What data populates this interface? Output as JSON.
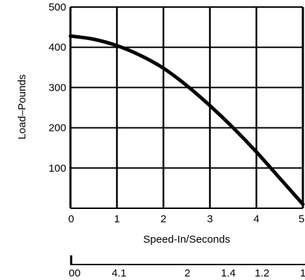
{
  "chart_data": {
    "type": "line",
    "title": "",
    "xlabel": "Speed-In/Seconds",
    "ylabel": "Load–Pounds",
    "xlim": [
      0,
      5
    ],
    "ylim": [
      0,
      500
    ],
    "grid": true,
    "x_ticks": [
      "0",
      "1",
      "2",
      "3",
      "4",
      "5"
    ],
    "y_ticks": [
      "100",
      "200",
      "300",
      "400",
      "500"
    ],
    "series": [
      {
        "x": [
          0,
          0.5,
          1,
          1.5,
          2,
          2.5,
          3,
          3.5,
          4,
          4.5,
          5
        ],
        "values": [
          428,
          420,
          404,
          380,
          348,
          305,
          255,
          200,
          140,
          75,
          10
        ]
      }
    ],
    "secondary_axis": {
      "tick_labels": [
        "00",
        "4.1",
        "2",
        "1.4",
        "1.2",
        "1"
      ]
    },
    "colors": {
      "line": "#000000",
      "grid": "#000000",
      "background": "#ffffff"
    }
  }
}
